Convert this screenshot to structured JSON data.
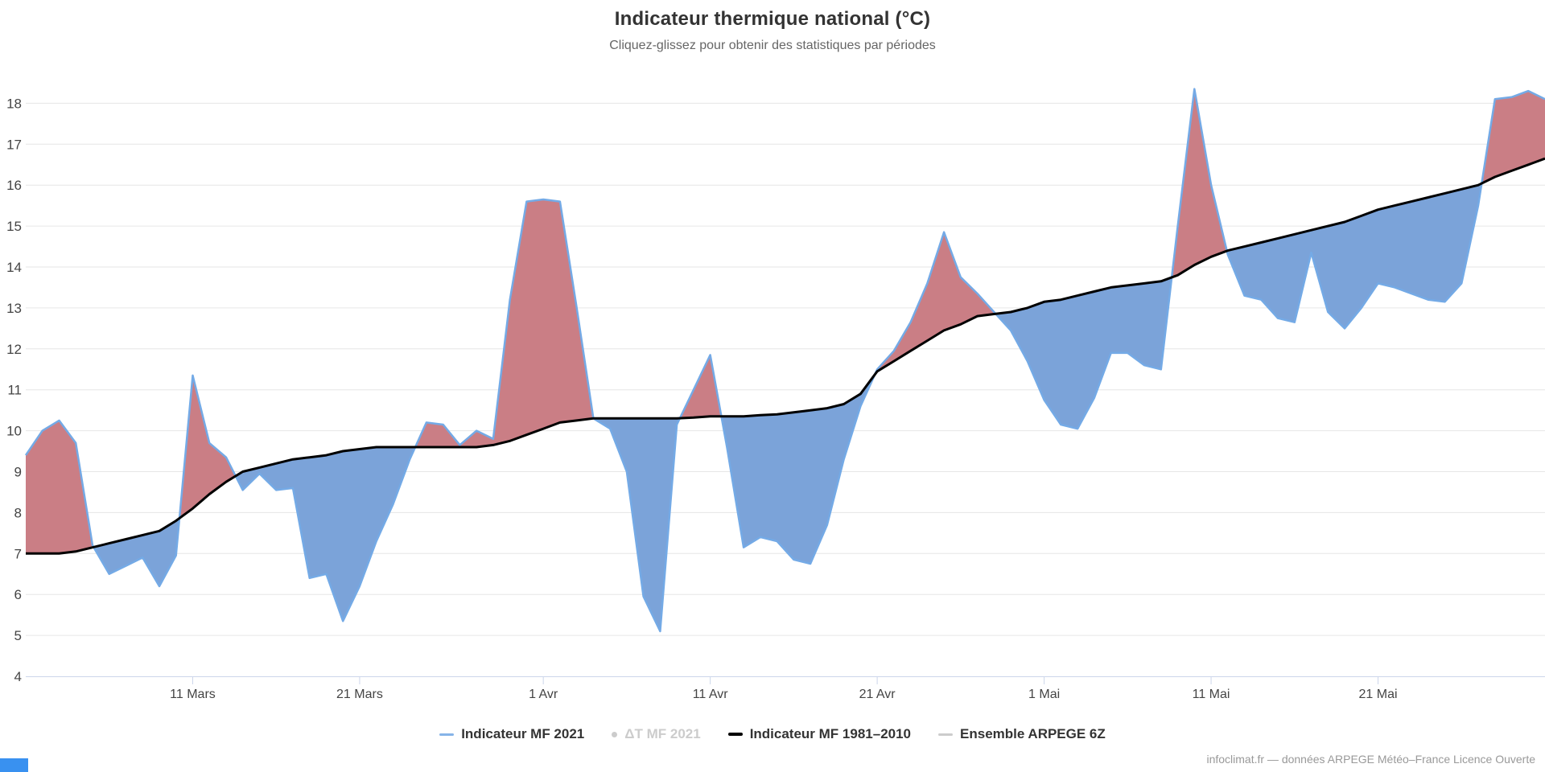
{
  "title": "Indicateur thermique national (°C)",
  "subtitle": "Cliquez-glissez pour obtenir des statistiques par périodes",
  "credits": "infoclimat.fr — données ARPEGE Météo–France Licence Ouverte",
  "legend": {
    "items": [
      {
        "label": "Indicateur MF 2021",
        "marker": "line",
        "color": "#86b4e8",
        "enabled": true
      },
      {
        "label": "ΔT MF 2021",
        "marker": "dot",
        "color": "#cccccc",
        "enabled": false
      },
      {
        "label": "Indicateur MF 1981–2010",
        "marker": "line-thick",
        "color": "#000000",
        "enabled": true
      },
      {
        "label": "Ensemble ARPEGE 6Z",
        "marker": "line",
        "color": "#cccccc",
        "enabled": true
      }
    ]
  },
  "colors": {
    "line_2021": "#74aae6",
    "line_normal": "#000000",
    "fill_above": "#ca7e85",
    "fill_below": "#7ba3d9",
    "gridline": "#e6e6e6",
    "axis_line": "#ccd6eb",
    "axis_label": "#444444",
    "corner_artifact": "#3991f0"
  },
  "chart_data": {
    "type": "area",
    "x_unit": "day",
    "x_range": [
      "1 Mars 2021",
      "31 Mai 2021"
    ],
    "n_days": 92,
    "x_tick_day_indices": [
      10,
      20,
      31,
      41,
      51,
      61,
      71,
      81
    ],
    "x_tick_labels": [
      "11 Mars",
      "21 Mars",
      "1 Avr",
      "11 Avr",
      "21 Avr",
      "1 Mai",
      "11 Mai",
      "21 Mai"
    ],
    "y_ticks": [
      4,
      5,
      6,
      7,
      8,
      9,
      10,
      11,
      12,
      13,
      14,
      15,
      16,
      17,
      18
    ],
    "ylim": [
      4,
      18.7
    ],
    "grid": true,
    "legend_position": "bottom",
    "series": [
      {
        "name": "Indicateur MF 2021",
        "values": [
          9.4,
          10.0,
          10.25,
          9.7,
          7.2,
          6.5,
          6.7,
          6.9,
          6.2,
          6.95,
          11.35,
          9.7,
          9.35,
          8.55,
          8.95,
          8.55,
          8.6,
          6.4,
          6.5,
          5.35,
          6.2,
          7.3,
          8.2,
          9.3,
          10.2,
          10.15,
          9.65,
          10.0,
          9.8,
          13.2,
          15.6,
          15.65,
          15.6,
          13.0,
          10.3,
          10.05,
          9.0,
          5.95,
          5.1,
          10.15,
          11.0,
          11.85,
          9.6,
          7.15,
          7.4,
          7.3,
          6.85,
          6.75,
          7.7,
          9.3,
          10.6,
          11.5,
          11.95,
          12.65,
          13.6,
          14.85,
          13.75,
          13.35,
          12.9,
          12.45,
          11.7,
          10.75,
          10.15,
          10.05,
          10.8,
          11.9,
          11.9,
          11.6,
          11.5,
          15.0,
          18.35,
          16.0,
          14.3,
          13.3,
          13.2,
          12.75,
          12.65,
          14.35,
          12.9,
          12.5,
          13.0,
          13.6,
          13.5,
          13.35,
          13.2,
          13.15,
          13.6,
          15.5,
          18.1,
          18.15,
          18.3,
          18.1
        ]
      },
      {
        "name": "Indicateur MF 1981–2010",
        "values": [
          7.0,
          7.0,
          7.0,
          7.05,
          7.15,
          7.25,
          7.35,
          7.45,
          7.55,
          7.8,
          8.1,
          8.45,
          8.75,
          9.0,
          9.1,
          9.2,
          9.3,
          9.35,
          9.4,
          9.5,
          9.55,
          9.6,
          9.6,
          9.6,
          9.6,
          9.6,
          9.6,
          9.6,
          9.65,
          9.75,
          9.9,
          10.05,
          10.2,
          10.25,
          10.3,
          10.3,
          10.3,
          10.3,
          10.3,
          10.3,
          10.32,
          10.35,
          10.35,
          10.35,
          10.38,
          10.4,
          10.45,
          10.5,
          10.55,
          10.65,
          10.9,
          11.45,
          11.7,
          11.95,
          12.2,
          12.45,
          12.6,
          12.8,
          12.85,
          12.9,
          13.0,
          13.15,
          13.2,
          13.3,
          13.4,
          13.5,
          13.55,
          13.6,
          13.65,
          13.8,
          14.05,
          14.25,
          14.4,
          14.5,
          14.6,
          14.7,
          14.8,
          14.9,
          15.0,
          15.1,
          15.25,
          15.4,
          15.5,
          15.6,
          15.7,
          15.8,
          15.9,
          16.0,
          16.2,
          16.35,
          16.5,
          16.65
        ]
      }
    ],
    "annotations": {
      "fill_rule": "red where 2021 above 1981–2010 normal, blue where below"
    }
  }
}
